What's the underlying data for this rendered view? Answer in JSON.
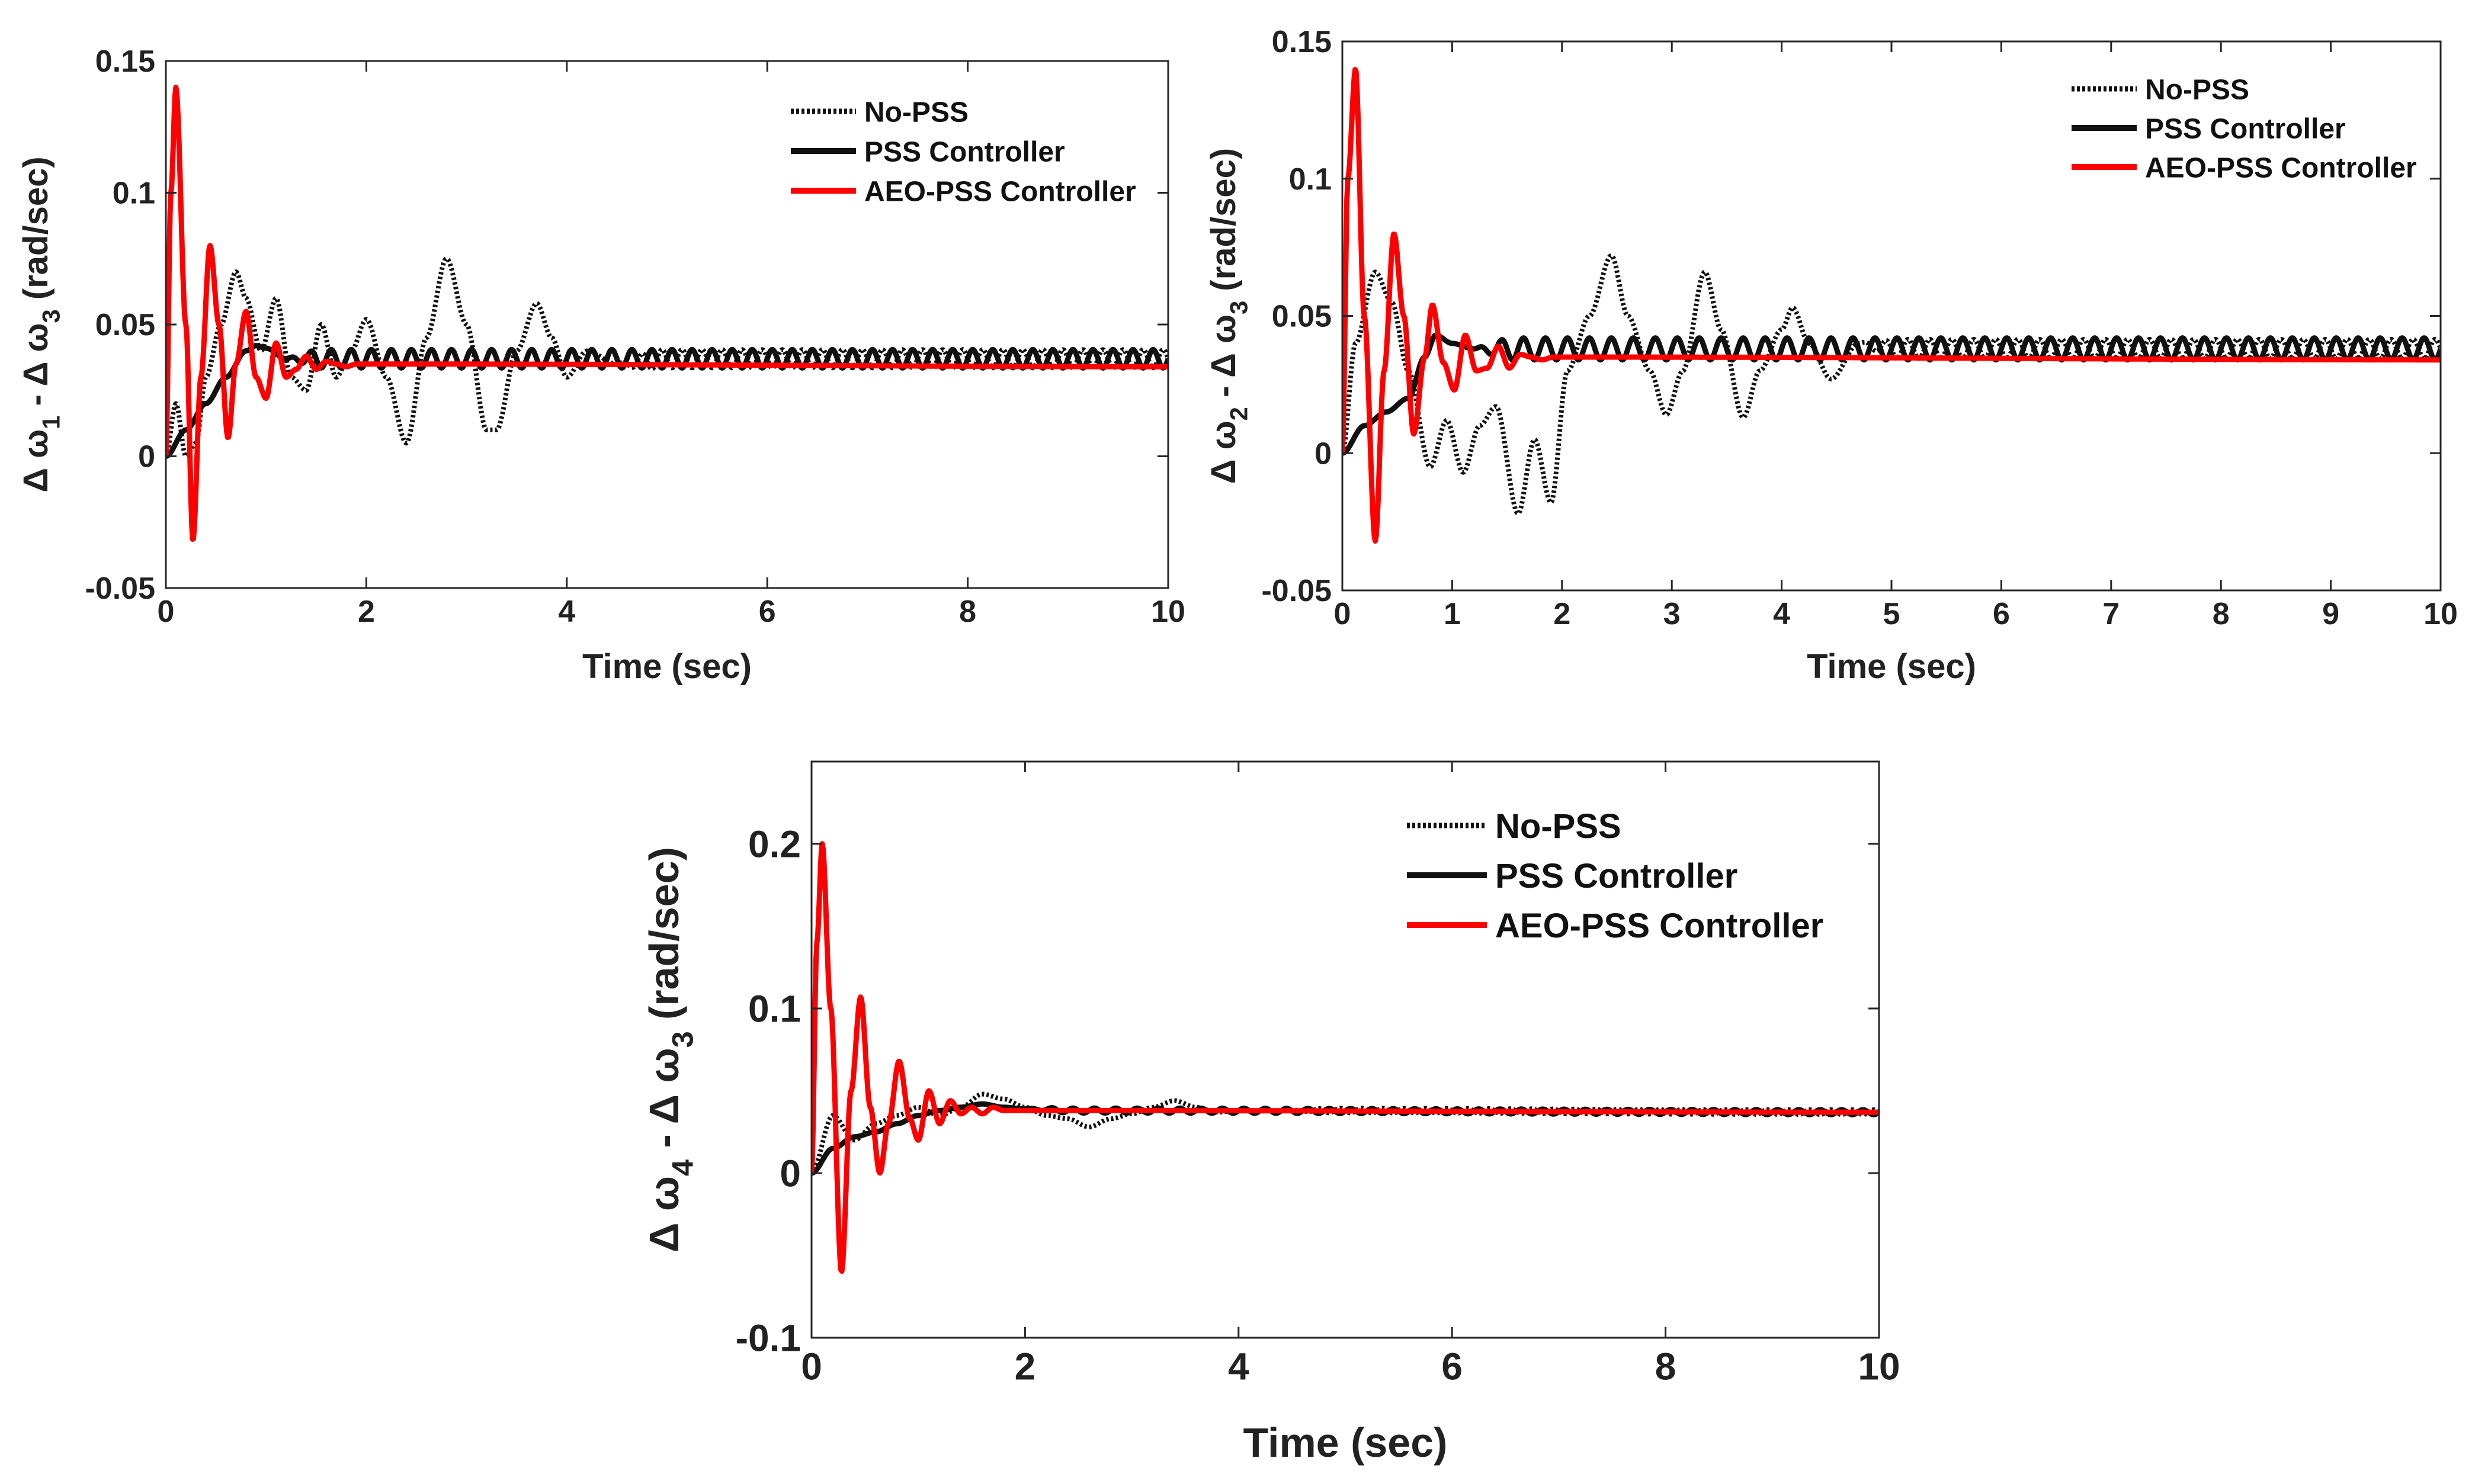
{
  "chart_data": [
    {
      "type": "line",
      "xlabel": "Time (sec)",
      "ylabel": "Δω1 - Δω3 (rad/sec)",
      "ylabel_parts": {
        "a": "Δ ω",
        "a_sub": "1",
        "mid": " - Δ ω",
        "b_sub": "3",
        "unit": " (rad/sec)"
      },
      "xlim": [
        0,
        10
      ],
      "ylim": [
        -0.05,
        0.15
      ],
      "xticks": [
        "0",
        "2",
        "4",
        "6",
        "8",
        "10"
      ],
      "yticks": [
        "-0.05",
        "0",
        "0.05",
        "0.1",
        "0.15"
      ],
      "xtick_values": [
        0,
        2,
        4,
        6,
        8,
        10
      ],
      "ytick_values": [
        -0.05,
        0,
        0.05,
        0.1,
        0.15
      ],
      "legend_position": "top-right",
      "series": [
        {
          "name": "No-PSS",
          "style": "dotted",
          "color": "#111111",
          "x": [
            0,
            0.1,
            0.2,
            0.3,
            0.4,
            0.55,
            0.7,
            0.8,
            0.95,
            1.1,
            1.25,
            1.4,
            1.55,
            1.7,
            1.85,
            2.0,
            2.2,
            2.4,
            2.6,
            2.8,
            3.0,
            3.2,
            3.3,
            3.5,
            3.7,
            3.85,
            4.0,
            4.2,
            4.5,
            5.0,
            10
          ],
          "values": [
            0,
            0.02,
            0.0,
            0.005,
            0.03,
            0.05,
            0.07,
            0.06,
            0.04,
            0.06,
            0.03,
            0.025,
            0.05,
            0.03,
            0.04,
            0.052,
            0.03,
            0.005,
            0.045,
            0.075,
            0.05,
            0.01,
            0.01,
            0.04,
            0.058,
            0.045,
            0.03,
            0.04,
            0.035,
            0.037,
            0.037
          ],
          "oscillation": {
            "from": 4.5,
            "amp": 0.0035,
            "period": 0.2
          }
        },
        {
          "name": "PSS Controller",
          "style": "solid",
          "color": "#111111",
          "x": [
            0,
            0.2,
            0.4,
            0.6,
            0.8,
            0.9,
            1.0,
            1.2,
            10
          ],
          "values": [
            0,
            0.01,
            0.02,
            0.03,
            0.04,
            0.042,
            0.041,
            0.037,
            0.037
          ],
          "oscillation": {
            "from": 1.2,
            "amp": 0.0035,
            "period": 0.2
          }
        },
        {
          "name": "AEO-PSS Controller",
          "style": "solid",
          "color": "#ff0000",
          "x": [
            0,
            0.05,
            0.1,
            0.2,
            0.27,
            0.35,
            0.44,
            0.53,
            0.62,
            0.7,
            0.8,
            0.9,
            1.0,
            1.1,
            1.2,
            1.3,
            1.4,
            1.5,
            1.6,
            1.7,
            1.8,
            1.9,
            2.0,
            2.5,
            10
          ],
          "values": [
            0,
            0.1,
            0.14,
            0.05,
            -0.032,
            0.03,
            0.08,
            0.05,
            0.007,
            0.035,
            0.055,
            0.03,
            0.022,
            0.043,
            0.03,
            0.033,
            0.038,
            0.033,
            0.036,
            0.035,
            0.034,
            0.035,
            0.035,
            0.035,
            0.034
          ]
        }
      ]
    },
    {
      "type": "line",
      "xlabel": "Time (sec)",
      "ylabel": "Δω2 - Δω3 (rad/sec)",
      "ylabel_parts": {
        "a": "Δ ω",
        "a_sub": "2",
        "mid": " - Δ ω",
        "b_sub": "3",
        "unit": " (rad/sec)"
      },
      "xlim": [
        0,
        10
      ],
      "ylim": [
        -0.05,
        0.15
      ],
      "xticks": [
        "0",
        "1",
        "2",
        "3",
        "4",
        "5",
        "6",
        "7",
        "8",
        "9",
        "10"
      ],
      "yticks": [
        "-0.05",
        "0",
        "0.05",
        "0.1",
        "0.15"
      ],
      "xtick_values": [
        0,
        1,
        2,
        3,
        4,
        5,
        6,
        7,
        8,
        9,
        10
      ],
      "ytick_values": [
        -0.05,
        0,
        0.05,
        0.1,
        0.15
      ],
      "legend_position": "top-right",
      "series": [
        {
          "name": "No-PSS",
          "style": "dotted",
          "color": "#111111",
          "x": [
            0,
            0.12,
            0.3,
            0.45,
            0.6,
            0.8,
            0.95,
            1.1,
            1.25,
            1.4,
            1.6,
            1.75,
            1.9,
            2.05,
            2.25,
            2.45,
            2.6,
            2.8,
            2.95,
            3.1,
            3.3,
            3.45,
            3.65,
            3.8,
            4.0,
            4.1,
            4.25,
            4.45,
            4.7,
            5.0,
            10
          ],
          "values": [
            0,
            0.04,
            0.066,
            0.055,
            0.03,
            -0.005,
            0.012,
            -0.007,
            0.01,
            0.017,
            -0.022,
            0.005,
            -0.018,
            0.03,
            0.05,
            0.072,
            0.05,
            0.03,
            0.014,
            0.03,
            0.066,
            0.045,
            0.013,
            0.03,
            0.045,
            0.053,
            0.04,
            0.027,
            0.04,
            0.038,
            0.038
          ],
          "oscillation": {
            "from": 4.7,
            "amp": 0.0035,
            "period": 0.2
          }
        },
        {
          "name": "PSS Controller",
          "style": "solid",
          "color": "#111111",
          "x": [
            0,
            0.2,
            0.4,
            0.6,
            0.75,
            0.85,
            1.0,
            1.2,
            10
          ],
          "values": [
            0,
            0.01,
            0.015,
            0.02,
            0.035,
            0.043,
            0.04,
            0.038,
            0.038
          ],
          "oscillation": {
            "from": 1.2,
            "amp": 0.004,
            "period": 0.2
          }
        },
        {
          "name": "AEO-PSS Controller",
          "style": "solid",
          "color": "#ff0000",
          "x": [
            0,
            0.05,
            0.12,
            0.2,
            0.3,
            0.38,
            0.47,
            0.56,
            0.65,
            0.75,
            0.82,
            0.92,
            1.02,
            1.12,
            1.22,
            1.32,
            1.42,
            1.52,
            1.62,
            1.72,
            1.82,
            1.92,
            2.0,
            2.5,
            10
          ],
          "values": [
            0,
            0.1,
            0.14,
            0.05,
            -0.032,
            0.03,
            0.08,
            0.05,
            0.007,
            0.035,
            0.054,
            0.033,
            0.023,
            0.043,
            0.03,
            0.031,
            0.039,
            0.031,
            0.036,
            0.035,
            0.034,
            0.035,
            0.035,
            0.035,
            0.034
          ]
        }
      ]
    },
    {
      "type": "line",
      "xlabel": "Time (sec)",
      "ylabel": "Δω4 - Δω3 (rad/sec)",
      "ylabel_parts": {
        "a": "Δ ω",
        "a_sub": "4",
        "mid": " - Δ ω",
        "b_sub": "3",
        "unit": " (rad/sec)"
      },
      "xlim": [
        0,
        10
      ],
      "ylim": [
        -0.1,
        0.25
      ],
      "xticks": [
        "0",
        "2",
        "4",
        "6",
        "8",
        "10"
      ],
      "yticks": [
        "-0.1",
        "0",
        "0.1",
        "0.2"
      ],
      "xtick_values": [
        0,
        2,
        4,
        6,
        8,
        10
      ],
      "ytick_values": [
        -0.1,
        0,
        0.1,
        0.2
      ],
      "legend_position": "top-right",
      "series": [
        {
          "name": "No-PSS",
          "style": "dotted",
          "color": "#111111",
          "x": [
            0,
            0.2,
            0.4,
            0.6,
            0.8,
            1.0,
            1.2,
            1.4,
            1.6,
            1.8,
            2.0,
            2.2,
            2.4,
            2.6,
            2.8,
            3.0,
            3.2,
            3.4,
            3.6,
            3.8,
            4.0,
            4.5,
            10
          ],
          "values": [
            0,
            0.035,
            0.02,
            0.03,
            0.035,
            0.04,
            0.035,
            0.04,
            0.048,
            0.045,
            0.04,
            0.035,
            0.033,
            0.028,
            0.033,
            0.036,
            0.04,
            0.044,
            0.04,
            0.037,
            0.038,
            0.038,
            0.037
          ],
          "oscillation": {
            "from": 4.5,
            "amp": 0.0015,
            "period": 0.2
          }
        },
        {
          "name": "PSS Controller",
          "style": "solid",
          "color": "#111111",
          "x": [
            0,
            0.2,
            0.4,
            0.6,
            0.8,
            1.0,
            1.2,
            1.4,
            1.6,
            1.8,
            2.0,
            2.5,
            10
          ],
          "values": [
            0,
            0.015,
            0.022,
            0.025,
            0.03,
            0.035,
            0.038,
            0.04,
            0.042,
            0.04,
            0.039,
            0.038,
            0.037
          ],
          "oscillation": {
            "from": 2.0,
            "amp": 0.0015,
            "period": 0.2
          }
        },
        {
          "name": "AEO-PSS Controller",
          "style": "solid",
          "color": "#ff0000",
          "x": [
            0,
            0.05,
            0.1,
            0.18,
            0.28,
            0.37,
            0.46,
            0.55,
            0.64,
            0.72,
            0.82,
            0.92,
            1.0,
            1.1,
            1.2,
            1.3,
            1.4,
            1.5,
            1.6,
            1.7,
            1.8,
            2.0,
            2.5,
            10
          ],
          "values": [
            0,
            0.14,
            0.2,
            0.1,
            -0.06,
            0.05,
            0.107,
            0.04,
            0.0,
            0.03,
            0.068,
            0.033,
            0.02,
            0.05,
            0.03,
            0.044,
            0.036,
            0.04,
            0.036,
            0.04,
            0.038,
            0.038,
            0.038,
            0.037
          ]
        }
      ]
    }
  ]
}
